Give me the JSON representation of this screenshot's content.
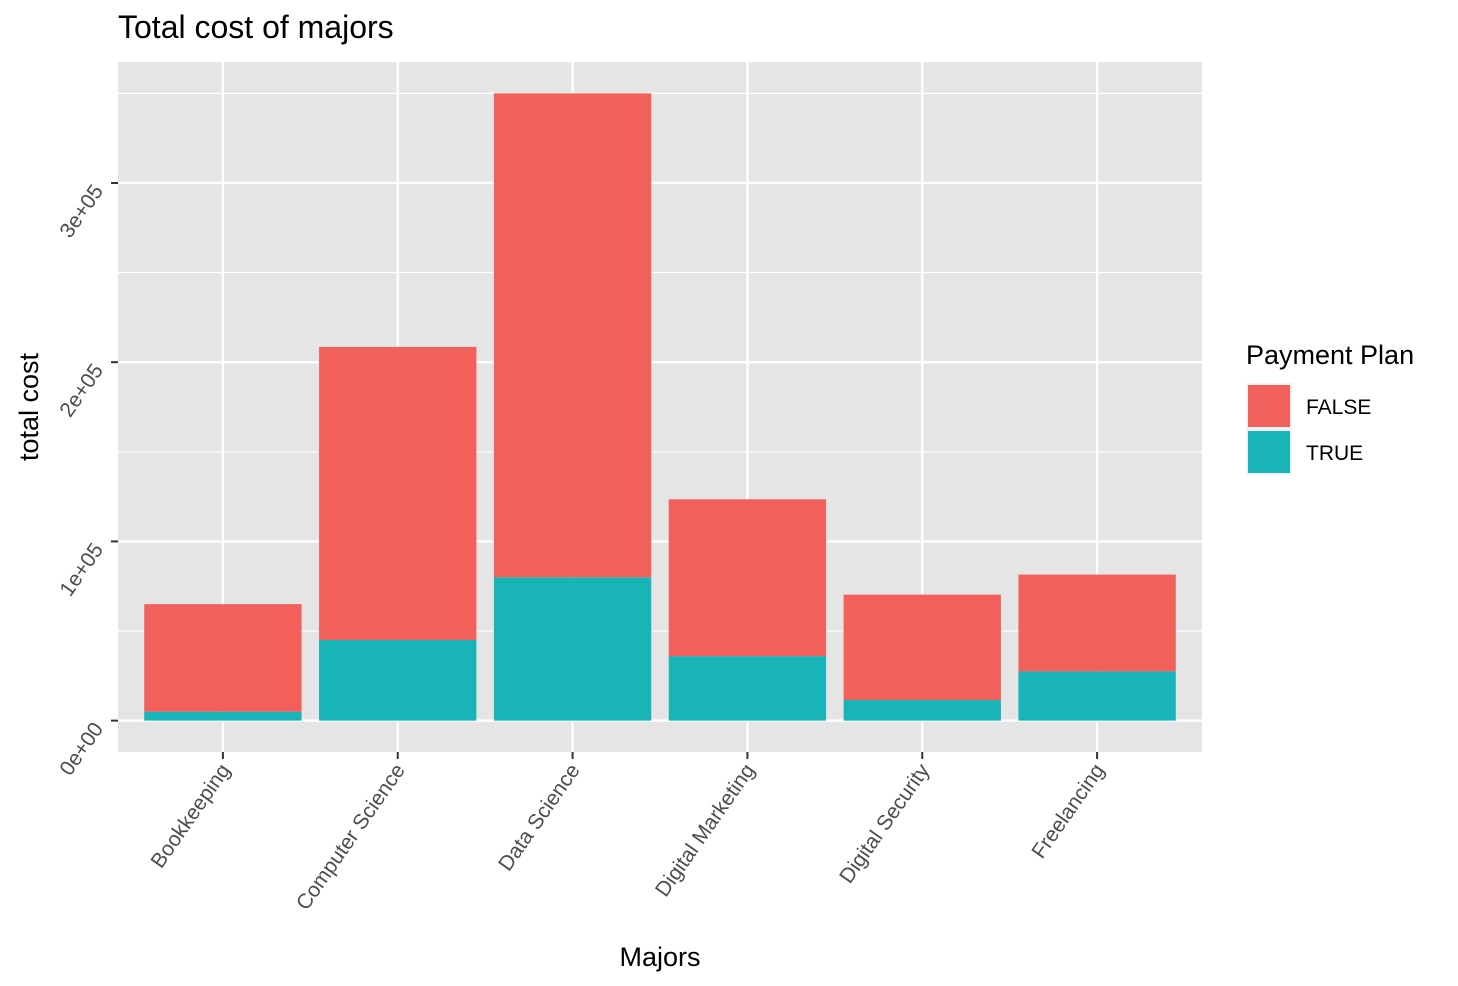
{
  "chart_data": {
    "type": "bar",
    "stacked": true,
    "title": "Total cost of majors",
    "xlabel": "Majors",
    "ylabel": "total cost",
    "categories": [
      "Bookkeeping",
      "Computer Science",
      "Data Science",
      "Digital Marketing",
      "Digital Security",
      "Freelancing"
    ],
    "series": [
      {
        "name": "TRUE",
        "color": "#19b4b8",
        "values": [
          5000,
          45000,
          80000,
          36000,
          11500,
          27500
        ]
      },
      {
        "name": "FALSE",
        "color": "#f2605b",
        "values": [
          60000,
          163500,
          270000,
          87500,
          58800,
          54000
        ]
      }
    ],
    "ylim": [
      -17500,
      367500
    ],
    "y_ticks": [
      0,
      100000,
      200000,
      300000
    ],
    "y_tick_labels": [
      "0e+00",
      "1e+05",
      "2e+05",
      "3e+05"
    ],
    "grid": true,
    "panel_background": "#e5e5e5",
    "legend": {
      "title": "Payment Plan",
      "position": "right",
      "entries": [
        {
          "label": "FALSE",
          "color": "#f2605b"
        },
        {
          "label": "TRUE",
          "color": "#19b4b8"
        }
      ]
    }
  }
}
